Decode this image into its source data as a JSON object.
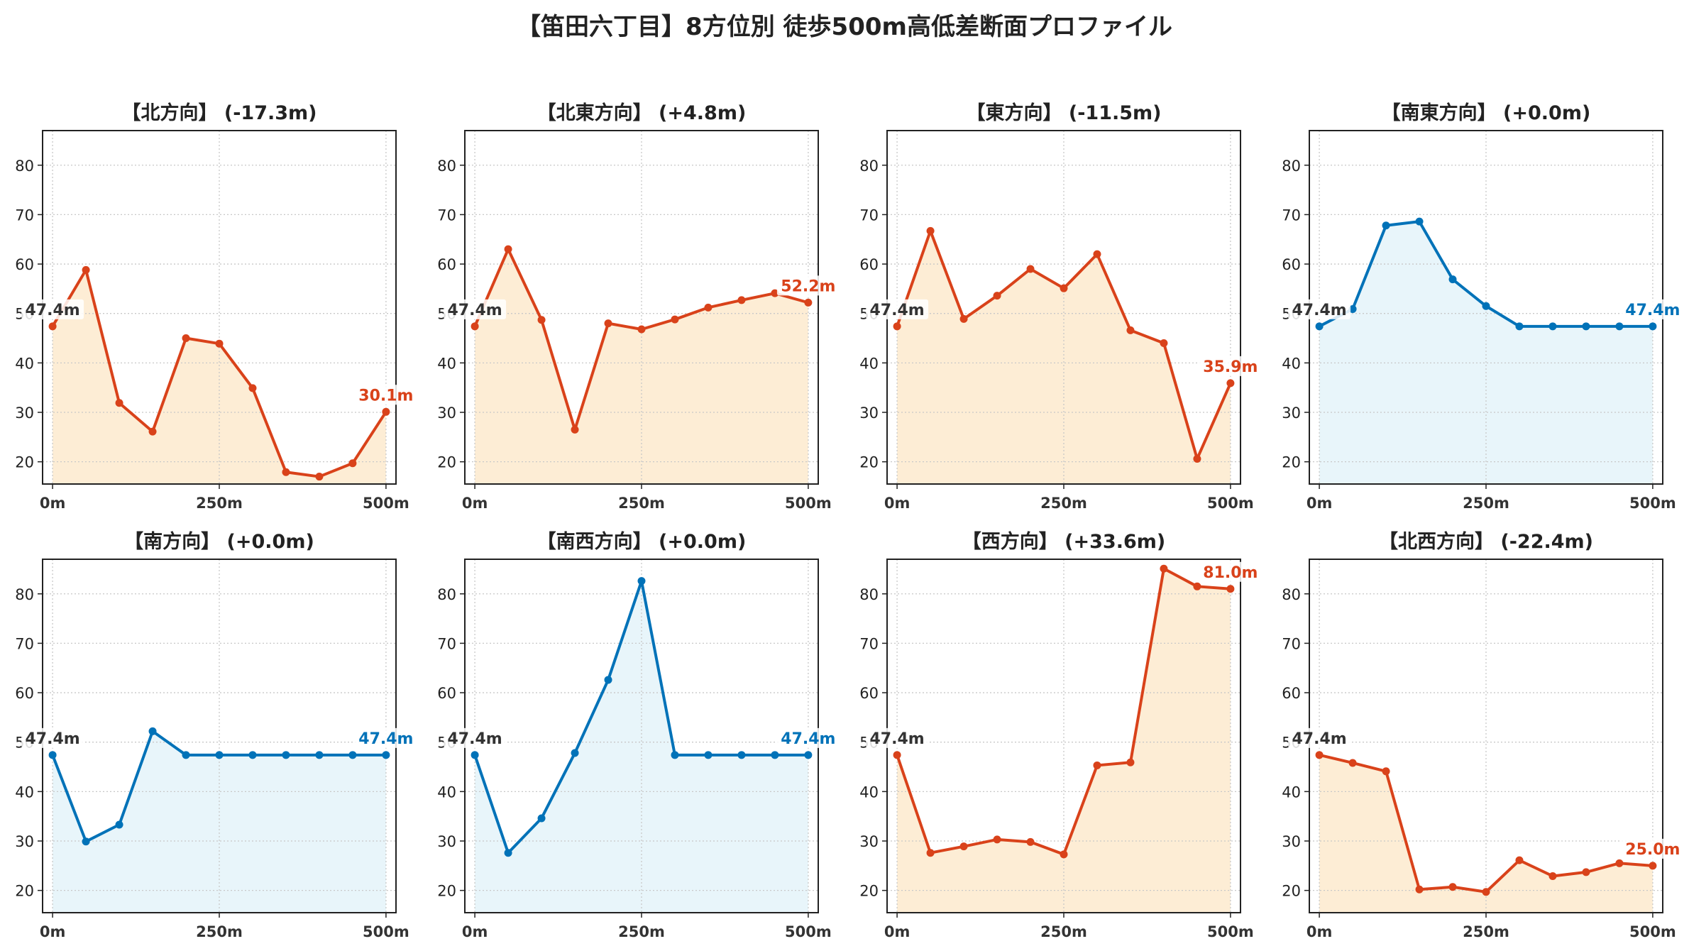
{
  "title": "【笛田六丁目】8方位別 徒歩500m高低差断面プロファイル",
  "colors": {
    "down_line": "#d9421a",
    "down_fill": "#fdebd0",
    "flat_line": "#1f77b4",
    "flat_line_alt": "#0072b8",
    "flat_fill": "#e6f4fa",
    "grid": "#c8c8c8",
    "start_label": "#333333"
  },
  "chart_data": [
    {
      "type": "line",
      "title": "【北方向】 (-17.3m)",
      "style": "orange",
      "x": [
        0,
        50,
        100,
        150,
        200,
        250,
        300,
        350,
        400,
        450,
        500
      ],
      "values": [
        47.4,
        58.8,
        31.9,
        26.1,
        45.0,
        43.9,
        34.9,
        17.9,
        17.0,
        19.7,
        30.1
      ],
      "start_label": "47.4m",
      "end_label": "30.1m",
      "xticks": [
        "0m",
        "250m",
        "500m"
      ],
      "yticks": [
        20,
        30,
        40,
        50,
        60,
        70,
        80
      ],
      "xlim": [
        -15,
        515
      ],
      "ylim": [
        15.5,
        87
      ],
      "grid": true
    },
    {
      "type": "line",
      "title": "【北東方向】 (+4.8m)",
      "style": "orange",
      "x": [
        0,
        50,
        100,
        150,
        200,
        250,
        300,
        350,
        400,
        450,
        500
      ],
      "values": [
        47.4,
        63.0,
        48.7,
        26.5,
        48.0,
        46.8,
        48.8,
        51.2,
        52.7,
        54.1,
        52.2
      ],
      "start_label": "47.4m",
      "end_label": "52.2m",
      "xticks": [
        "0m",
        "250m",
        "500m"
      ],
      "yticks": [
        20,
        30,
        40,
        50,
        60,
        70,
        80
      ],
      "xlim": [
        -15,
        515
      ],
      "ylim": [
        15.5,
        87
      ],
      "grid": true
    },
    {
      "type": "line",
      "title": "【東方向】 (-11.5m)",
      "style": "orange",
      "x": [
        0,
        50,
        100,
        150,
        200,
        250,
        300,
        350,
        400,
        450,
        500
      ],
      "values": [
        47.4,
        66.7,
        48.9,
        53.6,
        59.0,
        55.1,
        62.0,
        46.6,
        44.0,
        20.6,
        35.9
      ],
      "start_label": "47.4m",
      "end_label": "35.9m",
      "xticks": [
        "0m",
        "250m",
        "500m"
      ],
      "yticks": [
        20,
        30,
        40,
        50,
        60,
        70,
        80
      ],
      "xlim": [
        -15,
        515
      ],
      "ylim": [
        15.5,
        87
      ],
      "grid": true
    },
    {
      "type": "line",
      "title": "【南東方向】 (+0.0m)",
      "style": "blue",
      "x": [
        0,
        50,
        100,
        150,
        200,
        250,
        300,
        350,
        400,
        450,
        500
      ],
      "values": [
        47.4,
        50.9,
        67.8,
        68.6,
        56.9,
        51.5,
        47.4,
        47.4,
        47.4,
        47.4,
        47.4
      ],
      "start_label": "47.4m",
      "end_label": "47.4m",
      "xticks": [
        "0m",
        "250m",
        "500m"
      ],
      "yticks": [
        20,
        30,
        40,
        50,
        60,
        70,
        80
      ],
      "xlim": [
        -15,
        515
      ],
      "ylim": [
        15.5,
        87
      ],
      "grid": true
    },
    {
      "type": "line",
      "title": "【南方向】 (+0.0m)",
      "style": "blue",
      "x": [
        0,
        50,
        100,
        150,
        200,
        250,
        300,
        350,
        400,
        450,
        500
      ],
      "values": [
        47.4,
        29.9,
        33.3,
        52.2,
        47.4,
        47.4,
        47.4,
        47.4,
        47.4,
        47.4,
        47.4
      ],
      "start_label": "47.4m",
      "end_label": "47.4m",
      "xticks": [
        "0m",
        "250m",
        "500m"
      ],
      "yticks": [
        20,
        30,
        40,
        50,
        60,
        70,
        80
      ],
      "xlim": [
        -15,
        515
      ],
      "ylim": [
        15.5,
        87
      ],
      "grid": true
    },
    {
      "type": "line",
      "title": "【南西方向】 (+0.0m)",
      "style": "blue",
      "x": [
        0,
        50,
        100,
        150,
        200,
        250,
        300,
        350,
        400,
        450,
        500
      ],
      "values": [
        47.4,
        27.6,
        34.6,
        47.8,
        62.6,
        82.6,
        47.4,
        47.4,
        47.4,
        47.4,
        47.4
      ],
      "start_label": "47.4m",
      "end_label": "47.4m",
      "xticks": [
        "0m",
        "250m",
        "500m"
      ],
      "yticks": [
        20,
        30,
        40,
        50,
        60,
        70,
        80
      ],
      "xlim": [
        -15,
        515
      ],
      "ylim": [
        15.5,
        87
      ],
      "grid": true
    },
    {
      "type": "line",
      "title": "【西方向】 (+33.6m)",
      "style": "orange",
      "x": [
        0,
        50,
        100,
        150,
        200,
        250,
        300,
        350,
        400,
        450,
        500
      ],
      "values": [
        47.4,
        27.6,
        28.9,
        30.3,
        29.8,
        27.3,
        45.3,
        45.9,
        85.1,
        81.5,
        81.0
      ],
      "start_label": "47.4m",
      "end_label": "81.0m",
      "xticks": [
        "0m",
        "250m",
        "500m"
      ],
      "yticks": [
        20,
        30,
        40,
        50,
        60,
        70,
        80
      ],
      "xlim": [
        -15,
        515
      ],
      "ylim": [
        15.5,
        87
      ],
      "grid": true
    },
    {
      "type": "line",
      "title": "【北西方向】 (-22.4m)",
      "style": "orange",
      "x": [
        0,
        50,
        100,
        150,
        200,
        250,
        300,
        350,
        400,
        450,
        500
      ],
      "values": [
        47.4,
        45.8,
        44.1,
        20.2,
        20.7,
        19.7,
        26.1,
        22.9,
        23.7,
        25.5,
        25.0
      ],
      "start_label": "47.4m",
      "end_label": "25.0m",
      "xticks": [
        "0m",
        "250m",
        "500m"
      ],
      "yticks": [
        20,
        30,
        40,
        50,
        60,
        70,
        80
      ],
      "xlim": [
        -15,
        515
      ],
      "ylim": [
        15.5,
        87
      ],
      "grid": true
    }
  ]
}
